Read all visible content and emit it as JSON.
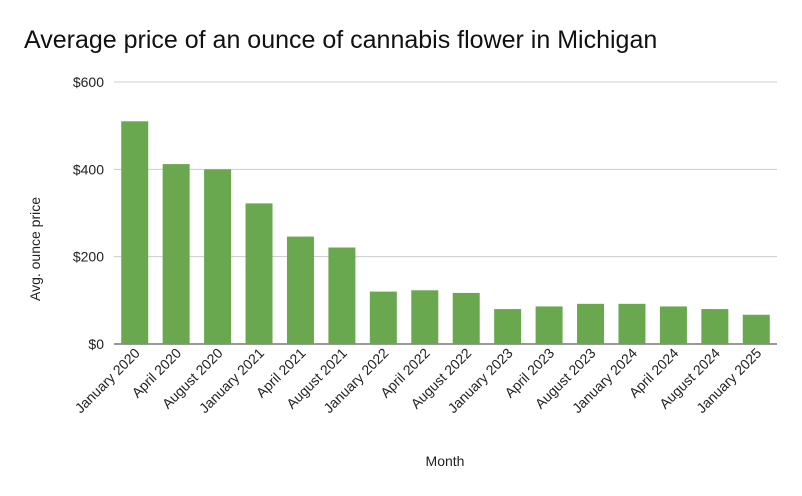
{
  "title": "Average price of an ounce of cannabis flower in Michigan",
  "chart_data": {
    "type": "bar",
    "title": "Average price of an ounce of cannabis flower in Michigan",
    "xlabel": "Month",
    "ylabel": "Avg. ounce price",
    "ylim": [
      0,
      600
    ],
    "yticks": [
      0,
      200,
      400,
      600
    ],
    "ytick_labels": [
      "$0",
      "$200",
      "$400",
      "$600"
    ],
    "grid": true,
    "legend": "none",
    "bar_color": "#6aa84f",
    "categories": [
      "January 2020",
      "April 2020",
      "August 2020",
      "January 2021",
      "April 2021",
      "August 2021",
      "January 2022",
      "April 2022",
      "August 2022",
      "January 2023",
      "April 2023",
      "August 2023",
      "January 2024",
      "April 2024",
      "August 2024",
      "January 2025"
    ],
    "values": [
      510,
      412,
      400,
      322,
      246,
      221,
      120,
      123,
      117,
      80,
      86,
      92,
      92,
      86,
      80,
      67
    ]
  }
}
